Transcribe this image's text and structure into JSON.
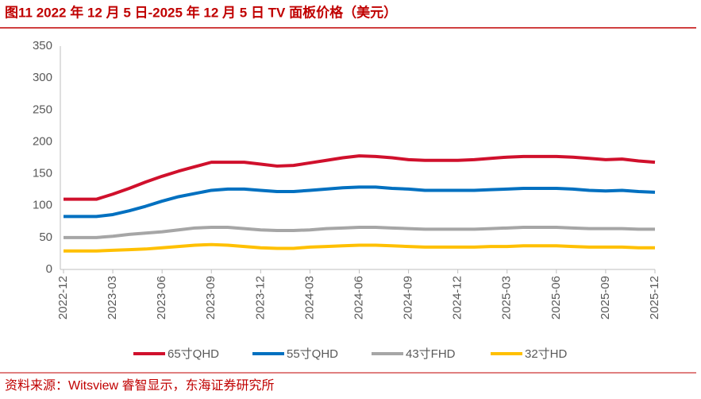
{
  "chart_data": {
    "type": "line",
    "title": "图11  2022 年 12 月 5 日-2025 年 12 月 5 日 TV 面板价格（美元）",
    "source": "资料来源：Witsview 睿智显示，东海证券研究所",
    "categories": [
      "2022-12",
      null,
      null,
      "2023-03",
      null,
      null,
      "2023-06",
      null,
      null,
      "2023-09",
      null,
      null,
      "2023-12",
      null,
      null,
      "2024-03",
      null,
      null,
      "2024-06",
      null,
      null,
      "2024-09",
      null,
      null,
      "2024-12",
      null,
      null,
      "2025-03",
      null,
      null,
      "2025-06",
      null,
      null,
      "2025-09",
      null,
      null,
      "2025-12"
    ],
    "series": [
      {
        "name": "65寸QHD",
        "color": "#d0102c",
        "values": [
          110,
          110,
          110,
          118,
          127,
          137,
          146,
          154,
          161,
          168,
          168,
          168,
          165,
          162,
          163,
          167,
          171,
          175,
          178,
          177,
          175,
          172,
          171,
          171,
          171,
          172,
          174,
          176,
          177,
          177,
          177,
          176,
          174,
          172,
          173,
          170,
          168
        ]
      },
      {
        "name": "55寸QHD",
        "color": "#0070c0",
        "values": [
          83,
          83,
          83,
          86,
          92,
          99,
          107,
          114,
          119,
          124,
          126,
          126,
          124,
          122,
          122,
          124,
          126,
          128,
          129,
          129,
          127,
          126,
          124,
          124,
          124,
          124,
          125,
          126,
          127,
          127,
          127,
          126,
          124,
          123,
          124,
          122,
          121
        ]
      },
      {
        "name": "43寸FHD",
        "color": "#a6a6a6",
        "values": [
          50,
          50,
          50,
          52,
          55,
          57,
          59,
          62,
          65,
          66,
          66,
          64,
          62,
          61,
          61,
          62,
          64,
          65,
          66,
          66,
          65,
          64,
          63,
          63,
          63,
          63,
          64,
          65,
          66,
          66,
          66,
          65,
          64,
          64,
          64,
          63,
          63
        ]
      },
      {
        "name": "32寸HD",
        "color": "#ffc000",
        "values": [
          29,
          29,
          29,
          30,
          31,
          32,
          34,
          36,
          38,
          39,
          38,
          36,
          34,
          33,
          33,
          35,
          36,
          37,
          38,
          38,
          37,
          36,
          35,
          35,
          35,
          35,
          36,
          36,
          37,
          37,
          37,
          36,
          35,
          35,
          35,
          34,
          34
        ]
      }
    ],
    "ylim": [
      0,
      350
    ],
    "yticks": [
      0,
      50,
      100,
      150,
      200,
      250,
      300,
      350
    ],
    "grid": false
  }
}
